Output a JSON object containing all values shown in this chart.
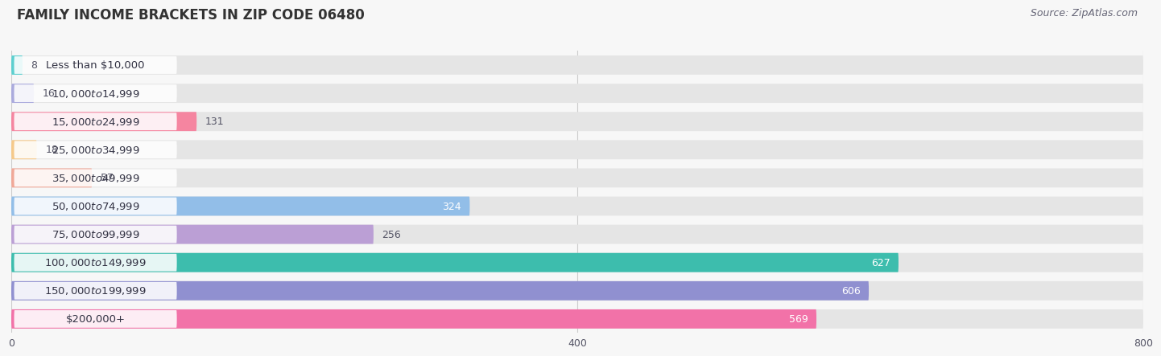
{
  "title": "FAMILY INCOME BRACKETS IN ZIP CODE 06480",
  "source": "Source: ZipAtlas.com",
  "categories": [
    "Less than $10,000",
    "$10,000 to $14,999",
    "$15,000 to $24,999",
    "$25,000 to $34,999",
    "$35,000 to $49,999",
    "$50,000 to $74,999",
    "$75,000 to $99,999",
    "$100,000 to $149,999",
    "$150,000 to $199,999",
    "$200,000+"
  ],
  "values": [
    8,
    16,
    131,
    18,
    57,
    324,
    256,
    627,
    606,
    569
  ],
  "bar_colors": [
    "#5BCFCF",
    "#AAAADD",
    "#F585A0",
    "#F5C98A",
    "#F0A898",
    "#92BEE8",
    "#BB9FD5",
    "#3DBDAD",
    "#9090D0",
    "#F272A8"
  ],
  "background_color": "#f7f7f7",
  "bar_bg_color": "#e5e5e5",
  "xlim_max": 800,
  "xticks": [
    0,
    400,
    800
  ],
  "title_fontsize": 12,
  "label_fontsize": 9.5,
  "value_fontsize": 9,
  "source_fontsize": 9,
  "bar_height": 0.68
}
